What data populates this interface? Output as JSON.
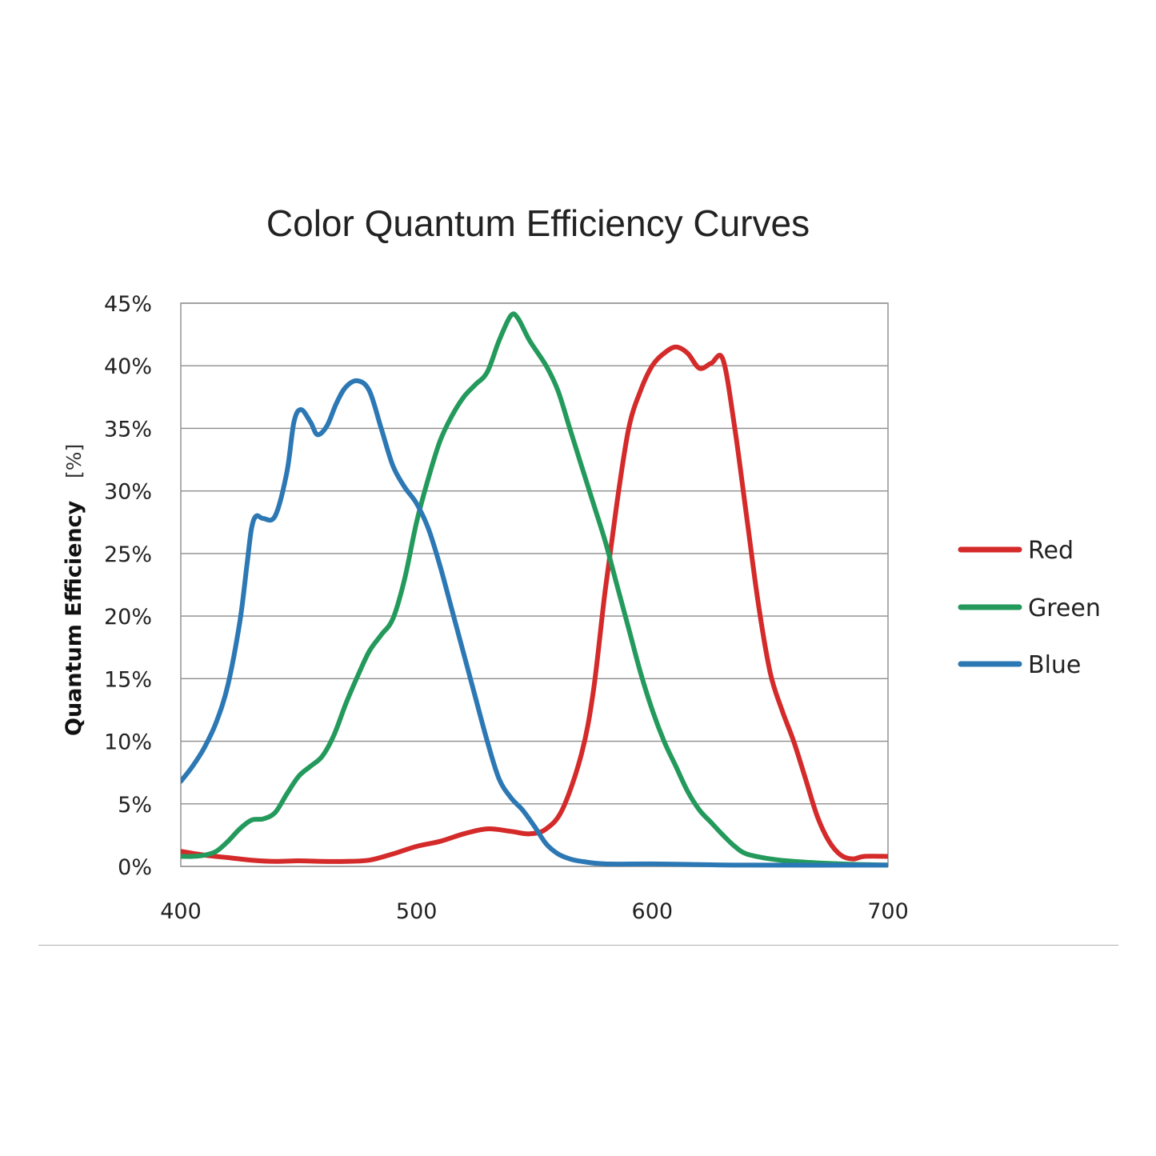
{
  "chart_data": {
    "type": "line",
    "title": "Color Quantum Efficiency Curves",
    "xlabel": "",
    "ylabel": "Quantum Efficiency",
    "ylabel_unit": "[%]",
    "xlim": [
      400,
      700
    ],
    "ylim": [
      0,
      45
    ],
    "x_ticks": [
      "400",
      "500",
      "600",
      "700"
    ],
    "y_ticks": [
      "0%",
      "5%",
      "10%",
      "15%",
      "20%",
      "25%",
      "30%",
      "35%",
      "40%",
      "45%"
    ],
    "grid": true,
    "legend_position": "right",
    "series": [
      {
        "name": "Red",
        "color": "#d42a2a",
        "points": [
          [
            400,
            1.2
          ],
          [
            410,
            0.9
          ],
          [
            420,
            0.7
          ],
          [
            430,
            0.5
          ],
          [
            440,
            0.4
          ],
          [
            450,
            0.45
          ],
          [
            460,
            0.4
          ],
          [
            470,
            0.4
          ],
          [
            480,
            0.5
          ],
          [
            490,
            1.0
          ],
          [
            500,
            1.6
          ],
          [
            510,
            2.0
          ],
          [
            520,
            2.6
          ],
          [
            530,
            3.0
          ],
          [
            540,
            2.8
          ],
          [
            548,
            2.6
          ],
          [
            555,
            3.0
          ],
          [
            562,
            4.6
          ],
          [
            570,
            9.0
          ],
          [
            575,
            14.0
          ],
          [
            580,
            22.0
          ],
          [
            585,
            29.0
          ],
          [
            590,
            35.0
          ],
          [
            595,
            38.0
          ],
          [
            600,
            40.0
          ],
          [
            605,
            41.0
          ],
          [
            610,
            41.5
          ],
          [
            615,
            41.0
          ],
          [
            620,
            39.8
          ],
          [
            625,
            40.2
          ],
          [
            630,
            40.5
          ],
          [
            635,
            35.0
          ],
          [
            640,
            28.0
          ],
          [
            645,
            21.0
          ],
          [
            650,
            15.5
          ],
          [
            655,
            12.5
          ],
          [
            660,
            10.0
          ],
          [
            665,
            7.0
          ],
          [
            670,
            4.0
          ],
          [
            675,
            2.0
          ],
          [
            680,
            0.9
          ],
          [
            685,
            0.6
          ],
          [
            690,
            0.8
          ],
          [
            700,
            0.8
          ]
        ]
      },
      {
        "name": "Green",
        "color": "#239a5c",
        "points": [
          [
            400,
            0.8
          ],
          [
            405,
            0.8
          ],
          [
            410,
            0.9
          ],
          [
            415,
            1.2
          ],
          [
            420,
            2.0
          ],
          [
            425,
            3.0
          ],
          [
            430,
            3.7
          ],
          [
            435,
            3.8
          ],
          [
            440,
            4.3
          ],
          [
            445,
            5.8
          ],
          [
            450,
            7.2
          ],
          [
            455,
            8.0
          ],
          [
            460,
            8.8
          ],
          [
            465,
            10.5
          ],
          [
            470,
            13.0
          ],
          [
            475,
            15.2
          ],
          [
            480,
            17.2
          ],
          [
            485,
            18.5
          ],
          [
            490,
            19.8
          ],
          [
            495,
            23.0
          ],
          [
            500,
            27.5
          ],
          [
            505,
            31.0
          ],
          [
            510,
            34.0
          ],
          [
            515,
            36.0
          ],
          [
            520,
            37.5
          ],
          [
            525,
            38.5
          ],
          [
            530,
            39.5
          ],
          [
            535,
            42.0
          ],
          [
            540,
            44.0
          ],
          [
            543,
            43.8
          ],
          [
            548,
            42.0
          ],
          [
            555,
            40.0
          ],
          [
            560,
            38.0
          ],
          [
            565,
            35.0
          ],
          [
            570,
            32.0
          ],
          [
            575,
            29.0
          ],
          [
            580,
            26.0
          ],
          [
            585,
            22.5
          ],
          [
            590,
            19.0
          ],
          [
            595,
            15.5
          ],
          [
            600,
            12.5
          ],
          [
            605,
            10.0
          ],
          [
            610,
            8.0
          ],
          [
            615,
            6.0
          ],
          [
            620,
            4.5
          ],
          [
            625,
            3.5
          ],
          [
            630,
            2.5
          ],
          [
            635,
            1.6
          ],
          [
            640,
            1.0
          ],
          [
            650,
            0.6
          ],
          [
            660,
            0.4
          ],
          [
            680,
            0.2
          ],
          [
            700,
            0.1
          ]
        ]
      },
      {
        "name": "Blue",
        "color": "#2c78b4",
        "points": [
          [
            400,
            6.8
          ],
          [
            405,
            8.0
          ],
          [
            410,
            9.5
          ],
          [
            415,
            11.5
          ],
          [
            420,
            14.5
          ],
          [
            425,
            19.5
          ],
          [
            428,
            24.0
          ],
          [
            430,
            27.0
          ],
          [
            432,
            28.0
          ],
          [
            435,
            27.8
          ],
          [
            440,
            28.0
          ],
          [
            445,
            31.5
          ],
          [
            448,
            35.5
          ],
          [
            451,
            36.5
          ],
          [
            455,
            35.5
          ],
          [
            458,
            34.5
          ],
          [
            462,
            35.2
          ],
          [
            466,
            37.0
          ],
          [
            470,
            38.3
          ],
          [
            475,
            38.8
          ],
          [
            480,
            38.0
          ],
          [
            485,
            35.0
          ],
          [
            490,
            32.0
          ],
          [
            495,
            30.3
          ],
          [
            500,
            29.0
          ],
          [
            505,
            27.0
          ],
          [
            510,
            24.0
          ],
          [
            515,
            20.5
          ],
          [
            520,
            17.0
          ],
          [
            525,
            13.5
          ],
          [
            530,
            10.0
          ],
          [
            535,
            7.0
          ],
          [
            540,
            5.5
          ],
          [
            545,
            4.5
          ],
          [
            550,
            3.2
          ],
          [
            555,
            1.8
          ],
          [
            560,
            1.0
          ],
          [
            565,
            0.6
          ],
          [
            570,
            0.4
          ],
          [
            580,
            0.2
          ],
          [
            600,
            0.2
          ],
          [
            620,
            0.15
          ],
          [
            640,
            0.1
          ],
          [
            700,
            0.1
          ]
        ]
      }
    ]
  }
}
